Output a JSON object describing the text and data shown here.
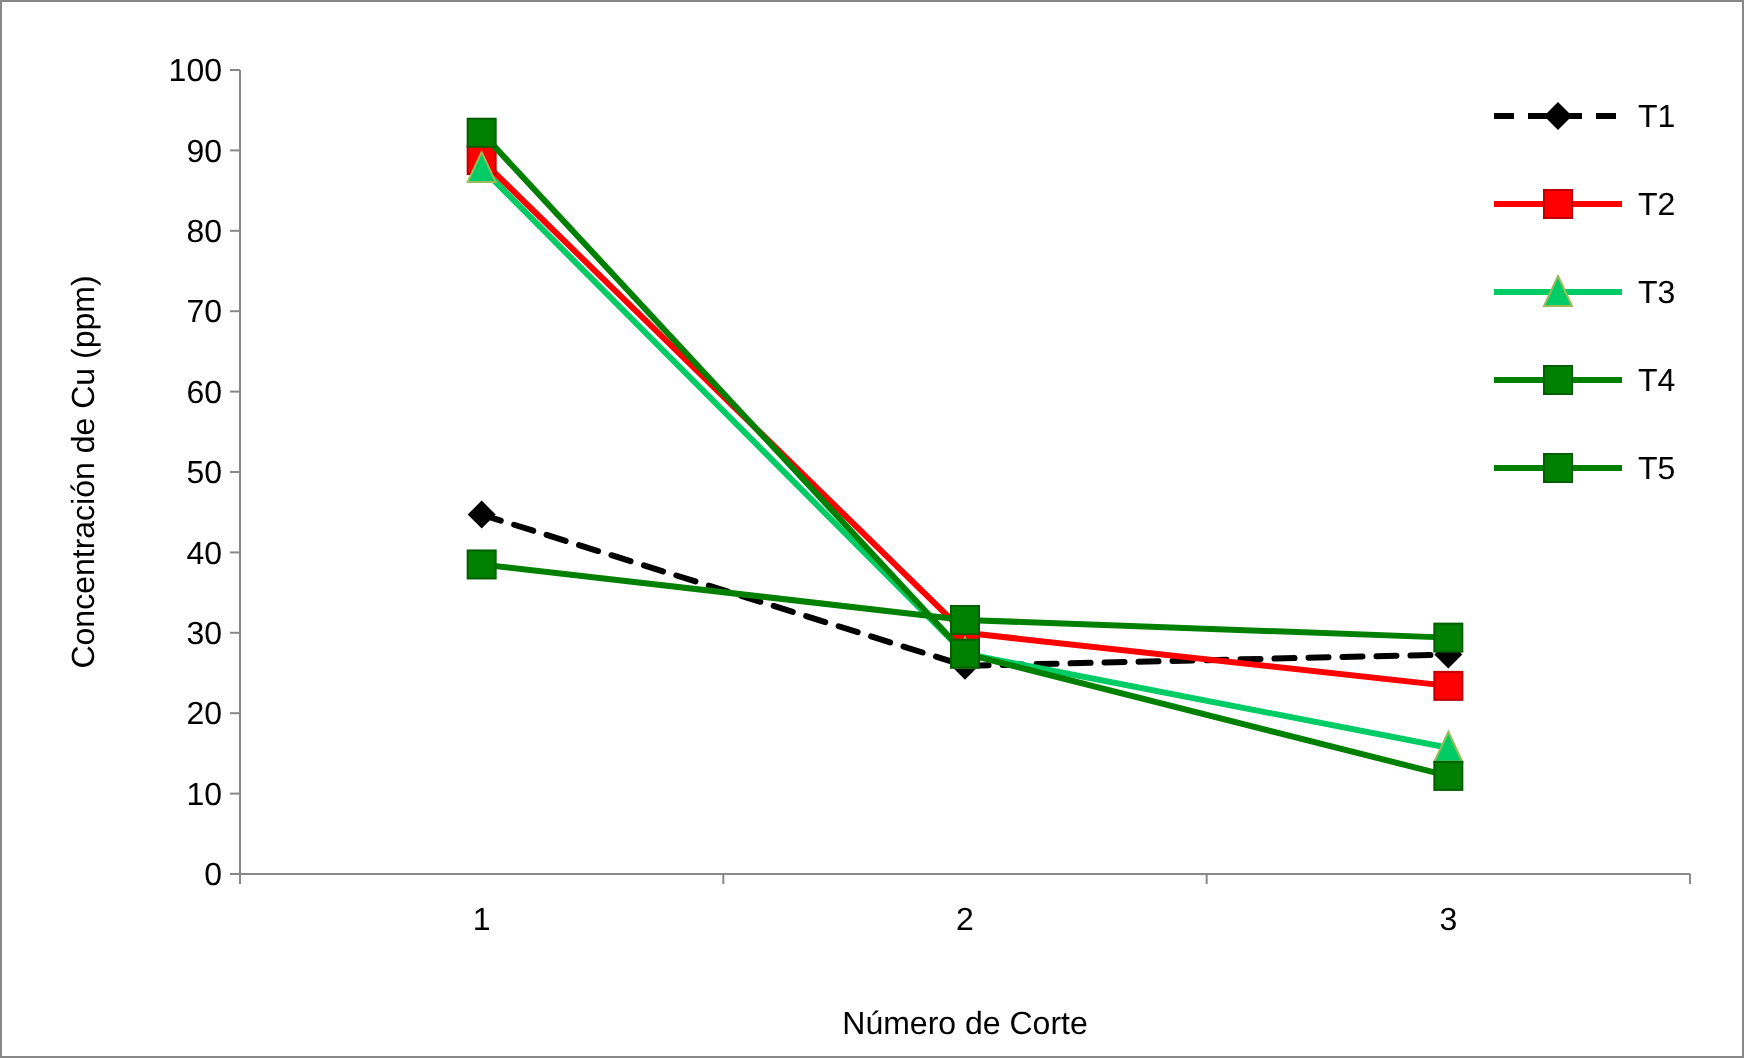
{
  "chart_data": {
    "type": "line",
    "xlabel": "Número de Corte",
    "ylabel": "Concentración de Cu (ppm)",
    "categories": [
      "1",
      "2",
      "3"
    ],
    "ylim": [
      0,
      100
    ],
    "yticks": [
      0,
      10,
      20,
      30,
      40,
      50,
      60,
      70,
      80,
      90,
      100
    ],
    "grid": false,
    "legend": "top right",
    "series": [
      {
        "name": "T1",
        "color": "#000000",
        "values": [
          44.7,
          25.9,
          27.3
        ],
        "marker": "diamond",
        "line_style": "dashed"
      },
      {
        "name": "T2",
        "color": "#ff0000",
        "values": [
          88.8,
          30.0,
          23.4
        ],
        "marker": "square",
        "line_style": "solid"
      },
      {
        "name": "T3",
        "color": "#00cc66",
        "values": [
          87.8,
          27.4,
          15.7
        ],
        "marker": "triangle",
        "line_style": "solid"
      },
      {
        "name": "T4",
        "color": "#008000",
        "values": [
          92.2,
          27.4,
          12.2
        ],
        "marker": "square",
        "line_style": "solid"
      },
      {
        "name": "T5",
        "color": "#008000",
        "values": [
          38.5,
          31.6,
          29.4
        ],
        "marker": "square",
        "line_style": "solid"
      }
    ]
  }
}
